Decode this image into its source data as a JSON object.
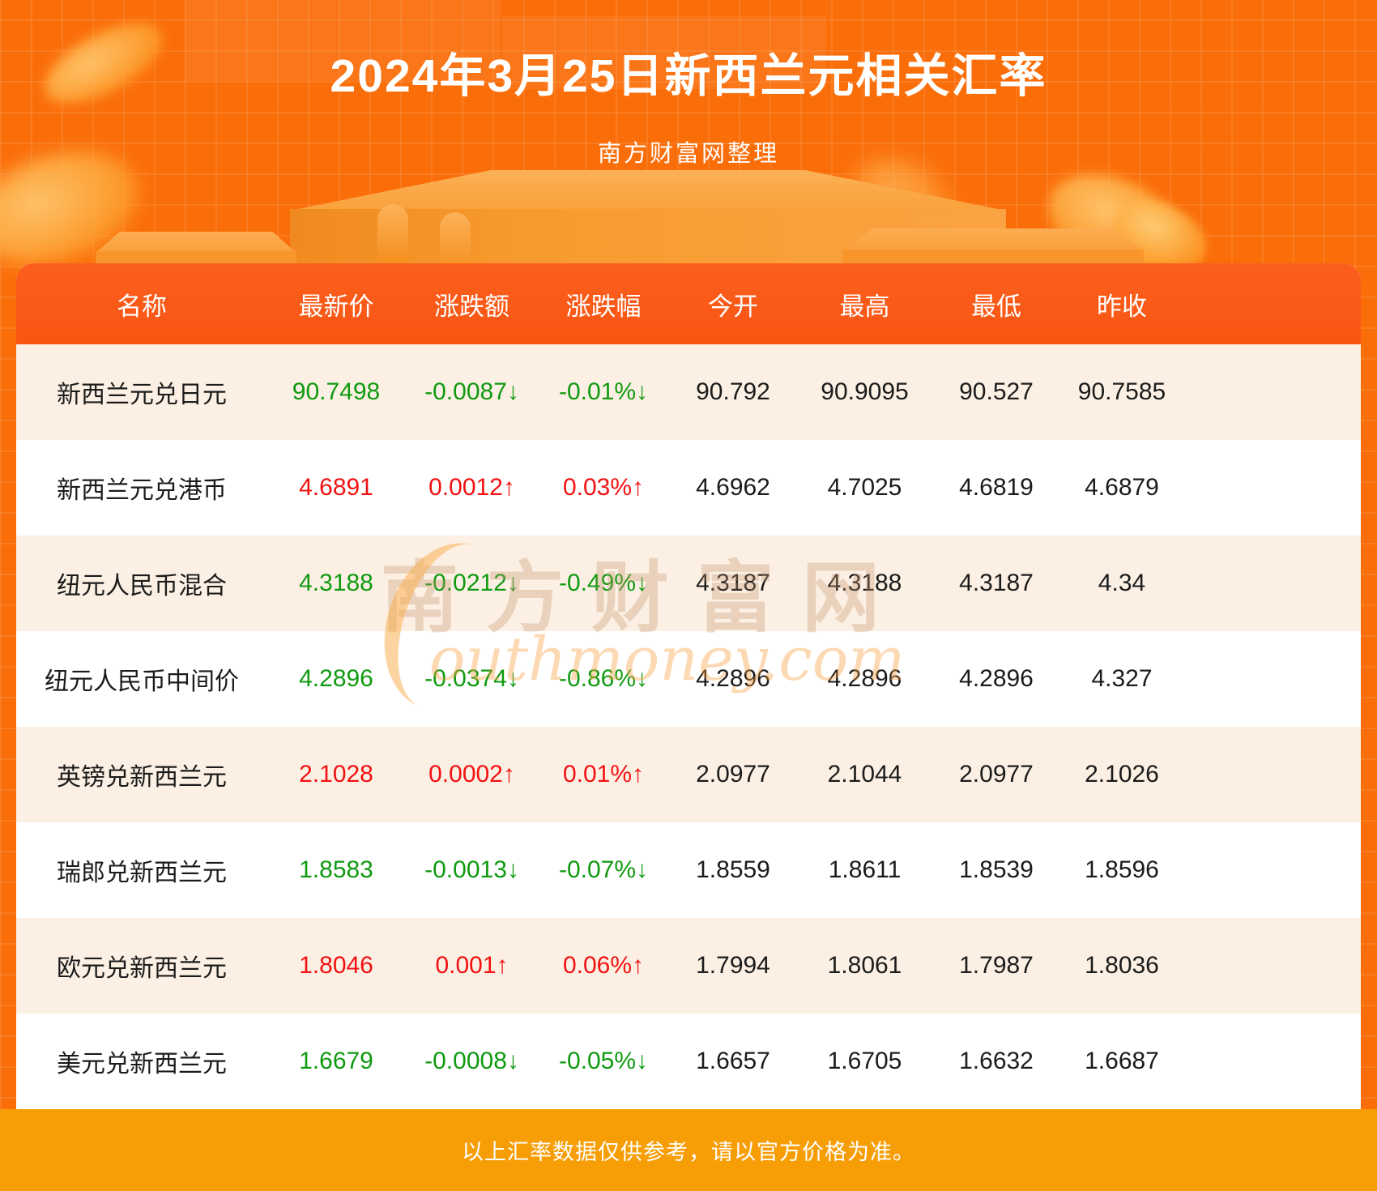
{
  "header": {
    "title": "2024年3月25日新西兰元相关汇率",
    "subtitle": "南方财富网整理"
  },
  "chart_data": {
    "type": "table",
    "title": "2024年3月25日新西兰元相关汇率",
    "columns": [
      "名称",
      "最新价",
      "涨跌额",
      "涨跌幅",
      "今开",
      "最高",
      "最低",
      "昨收"
    ],
    "rows": [
      {
        "name": "新西兰元兑日元",
        "last": "90.7498",
        "change": "-0.0087↓",
        "pct": "-0.01%↓",
        "trend": "down",
        "open": "90.792",
        "high": "90.9095",
        "low": "90.527",
        "prev": "90.7585"
      },
      {
        "name": "新西兰元兑港币",
        "last": "4.6891",
        "change": "0.0012↑",
        "pct": "0.03%↑",
        "trend": "up",
        "open": "4.6962",
        "high": "4.7025",
        "low": "4.6819",
        "prev": "4.6879"
      },
      {
        "name": "纽元人民币混合",
        "last": "4.3188",
        "change": "-0.0212↓",
        "pct": "-0.49%↓",
        "trend": "down",
        "open": "4.3187",
        "high": "4.3188",
        "low": "4.3187",
        "prev": "4.34"
      },
      {
        "name": "纽元人民币中间价",
        "last": "4.2896",
        "change": "-0.0374↓",
        "pct": "-0.86%↓",
        "trend": "down",
        "open": "4.2896",
        "high": "4.2896",
        "low": "4.2896",
        "prev": "4.327"
      },
      {
        "name": "英镑兑新西兰元",
        "last": "2.1028",
        "change": "0.0002↑",
        "pct": "0.01%↑",
        "trend": "up",
        "open": "2.0977",
        "high": "2.1044",
        "low": "2.0977",
        "prev": "2.1026"
      },
      {
        "name": "瑞郎兑新西兰元",
        "last": "1.8583",
        "change": "-0.0013↓",
        "pct": "-0.07%↓",
        "trend": "down",
        "open": "1.8559",
        "high": "1.8611",
        "low": "1.8539",
        "prev": "1.8596"
      },
      {
        "name": "欧元兑新西兰元",
        "last": "1.8046",
        "change": "0.001↑",
        "pct": "0.06%↑",
        "trend": "up",
        "open": "1.7994",
        "high": "1.8061",
        "low": "1.7987",
        "prev": "1.8036"
      },
      {
        "name": "美元兑新西兰元",
        "last": "1.6679",
        "change": "-0.0008↓",
        "pct": "-0.05%↓",
        "trend": "down",
        "open": "1.6657",
        "high": "1.6705",
        "low": "1.6632",
        "prev": "1.6687"
      }
    ]
  },
  "watermark": {
    "cn": "南方财富网",
    "en": "outhmoney.com"
  },
  "footer": {
    "note": "以上汇率数据仅供参考，请以官方价格为准。"
  },
  "colors": {
    "background": "#fa6e0a",
    "table_header": "#fa5a17",
    "row_cream": "#fcf0e4",
    "row_white": "#ffffff",
    "up_red": "#f21212",
    "down_green": "#0f9a10",
    "footer_band": "#f79d06"
  }
}
